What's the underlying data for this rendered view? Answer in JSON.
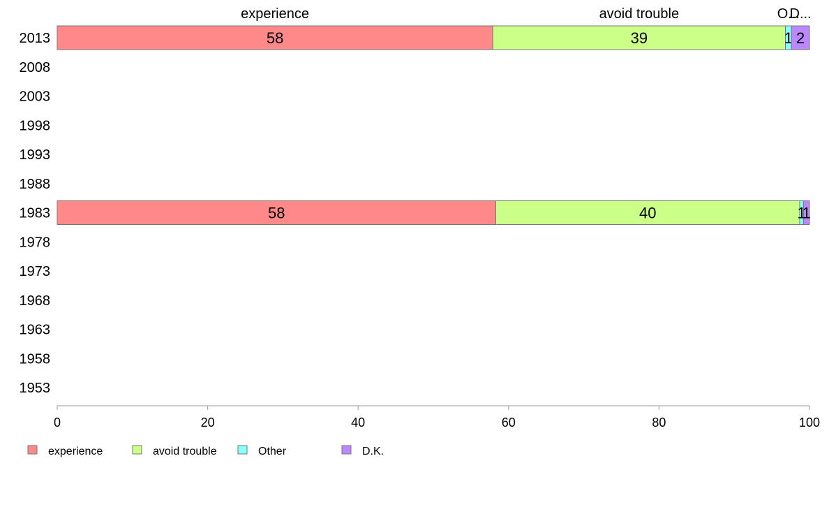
{
  "chart_data": {
    "type": "bar",
    "orientation": "horizontal",
    "stacked": true,
    "categories": [
      "2013",
      "2008",
      "2003",
      "1998",
      "1993",
      "1988",
      "1983",
      "1978",
      "1973",
      "1968",
      "1963",
      "1958",
      "1953"
    ],
    "series": [
      {
        "name": "experience",
        "color": "#ff8888",
        "values": [
          57.9,
          null,
          null,
          null,
          null,
          null,
          58.3,
          null,
          null,
          null,
          null,
          null,
          null
        ],
        "labels": [
          "58",
          "",
          "",
          "",
          "",
          "",
          "58",
          "",
          "",
          "",
          "",
          "",
          ""
        ]
      },
      {
        "name": "avoid trouble",
        "color": "#ccff88",
        "values": [
          38.9,
          null,
          null,
          null,
          null,
          null,
          40.4,
          null,
          null,
          null,
          null,
          null,
          null
        ],
        "labels": [
          "39",
          "",
          "",
          "",
          "",
          "",
          "40",
          "",
          "",
          "",
          "",
          "",
          ""
        ]
      },
      {
        "name": "Other",
        "color": "#88ffff",
        "values": [
          0.8,
          null,
          null,
          null,
          null,
          null,
          0.5,
          null,
          null,
          null,
          null,
          null,
          null
        ],
        "labels": [
          "1",
          "",
          "",
          "",
          "",
          "",
          "1",
          "",
          "",
          "",
          "",
          "",
          ""
        ]
      },
      {
        "name": "D.K.",
        "color": "#bb88ff",
        "values": [
          2.4,
          null,
          null,
          null,
          null,
          null,
          0.8,
          null,
          null,
          null,
          null,
          null,
          null
        ],
        "labels": [
          "2",
          "",
          "",
          "",
          "",
          "",
          "1",
          "",
          "",
          "",
          "",
          "",
          ""
        ]
      }
    ],
    "top_labels": [
      "experience",
      "avoid trouble",
      "O...",
      "D..."
    ],
    "xlim": [
      0,
      100
    ],
    "xticks": [
      "0",
      "20",
      "40",
      "60",
      "80",
      "100"
    ],
    "grid": false,
    "legend_position": "bottom-left"
  }
}
